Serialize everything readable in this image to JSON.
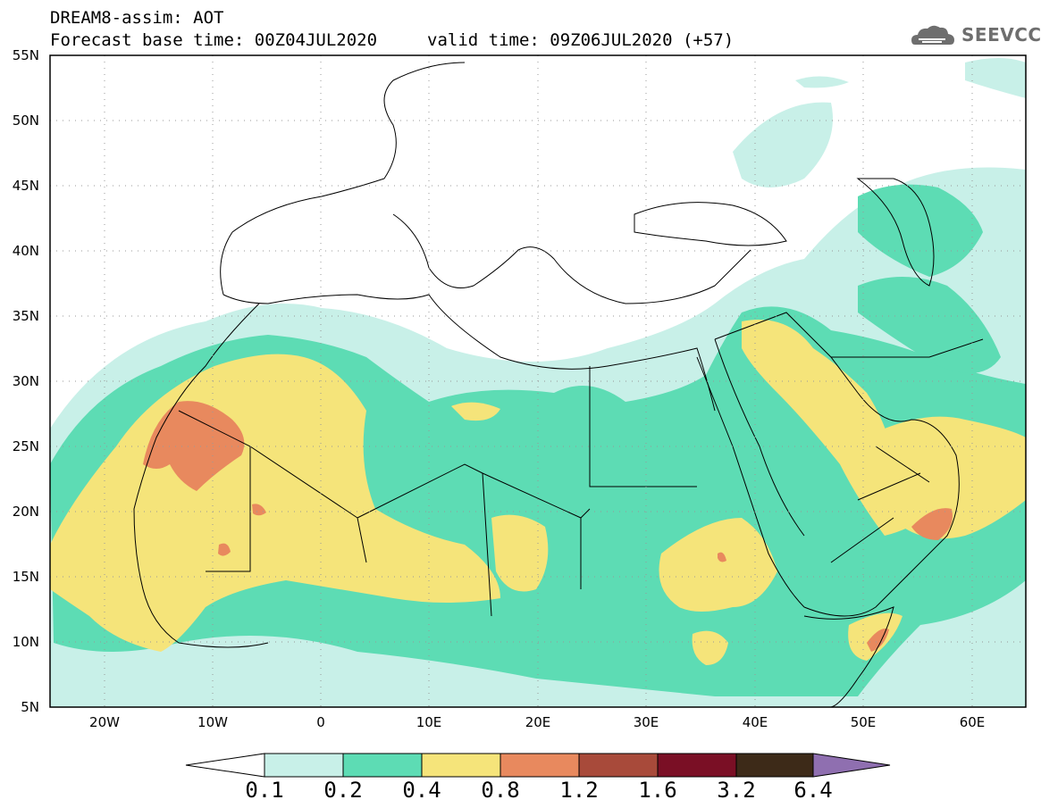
{
  "header": {
    "line1": "DREAM8-assim: AOT",
    "line2": "Forecast base time: 00Z04JUL2020",
    "valid": "valid time: 09Z06JUL2020 (+57)",
    "logo": "SEEVCCC"
  },
  "axes": {
    "lat_labels": [
      "55N",
      "50N",
      "45N",
      "40N",
      "35N",
      "30N",
      "25N",
      "20N",
      "15N",
      "10N",
      "5N"
    ],
    "lon_labels": [
      "20W",
      "10W",
      "0",
      "10E",
      "20E",
      "30E",
      "40E",
      "50E",
      "60E"
    ]
  },
  "colorbar": {
    "thresholds": [
      "0.1",
      "0.2",
      "0.4",
      "0.8",
      "1.2",
      "1.6",
      "3.2",
      "6.4"
    ],
    "colors": [
      "#c8f0e8",
      "#5ddcb4",
      "#f5e47a",
      "#e8895e",
      "#a84a3a",
      "#7a0f25",
      "#3d2a18",
      "#8f6fb0"
    ]
  },
  "colors": {
    "level1": "#c8f0e8",
    "level2": "#5ddcb4",
    "level3": "#f5e47a",
    "level4": "#e8895e",
    "level5": "#a84a3a"
  }
}
